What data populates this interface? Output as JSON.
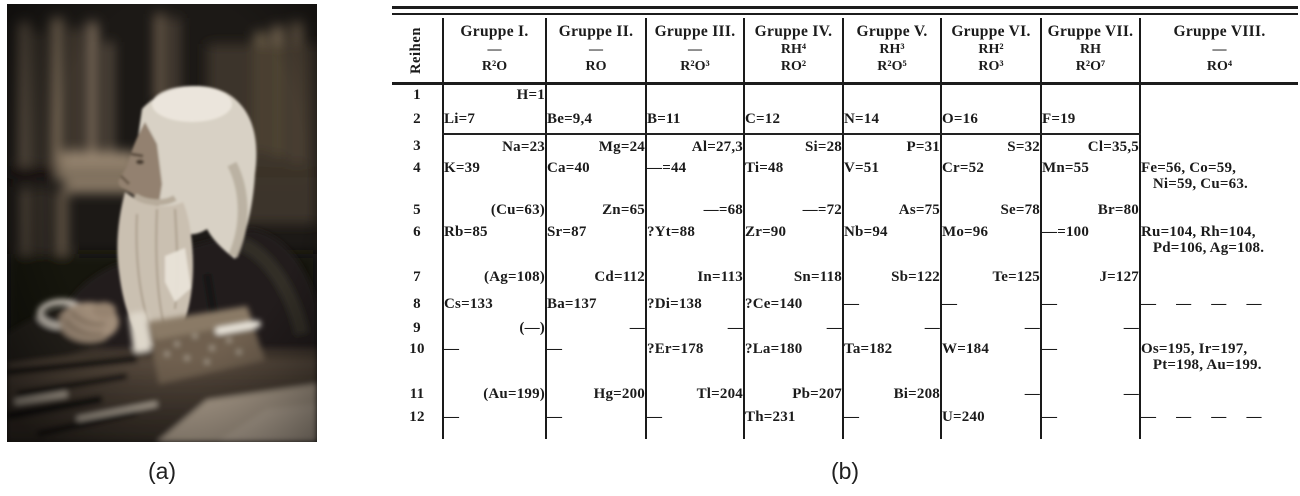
{
  "figure": {
    "caption_a": "(a)",
    "caption_b": "(b)"
  },
  "colors": {
    "ink": "#1b1b1b",
    "paper": "#ffffff"
  },
  "table": {
    "row_header_label": "Reihen",
    "columns": [
      {
        "name": "Gruppe I.",
        "hydride": "—",
        "oxide": "R²O"
      },
      {
        "name": "Gruppe II.",
        "hydride": "—",
        "oxide": "RO"
      },
      {
        "name": "Gruppe III.",
        "hydride": "—",
        "oxide": "R²O³"
      },
      {
        "name": "Gruppe IV.",
        "hydride": "RH⁴",
        "oxide": "RO²"
      },
      {
        "name": "Gruppe V.",
        "hydride": "RH³",
        "oxide": "R²O⁵"
      },
      {
        "name": "Gruppe VI.",
        "hydride": "RH²",
        "oxide": "RO³"
      },
      {
        "name": "Gruppe VII.",
        "hydride": "RH",
        "oxide": "R²O⁷"
      },
      {
        "name": "Gruppe VIII.",
        "hydride": "—",
        "oxide": "RO⁴"
      }
    ],
    "rows": [
      {
        "reihe": "1",
        "align": "right",
        "cells": [
          "H=1",
          "",
          "",
          "",
          "",
          "",
          "",
          ""
        ]
      },
      {
        "reihe": "2",
        "align": "left",
        "cells": [
          "Li=7",
          "Be=9,4",
          "B=11",
          "C=12",
          "N=14",
          "O=16",
          "F=19",
          ""
        ]
      },
      {
        "reihe": "3",
        "align": "right",
        "cells": [
          "Na=23",
          "Mg=24",
          "Al=27,3",
          "Si=28",
          "P=31",
          "S=32",
          "Cl=35,5",
          ""
        ]
      },
      {
        "reihe": "4",
        "align": "left",
        "cells": [
          "K=39",
          "Ca=40",
          "—=44",
          "Ti=48",
          "V=51",
          "Cr=52",
          "Mn=55",
          "Fe=56, Co=59,\n   Ni=59, Cu=63."
        ]
      },
      {
        "reihe": "5",
        "align": "right",
        "cells": [
          "(Cu=63)",
          "Zn=65",
          "—=68",
          "—=72",
          "As=75",
          "Se=78",
          "Br=80",
          ""
        ]
      },
      {
        "reihe": "6",
        "align": "left",
        "cells": [
          "Rb=85",
          "Sr=87",
          "?Yt=88",
          "Zr=90",
          "Nb=94",
          "Mo=96",
          "—=100",
          "Ru=104, Rh=104,\n   Pd=106, Ag=108."
        ]
      },
      {
        "reihe": "7",
        "align": "right",
        "cells": [
          "(Ag=108)",
          "Cd=112",
          "In=113",
          "Sn=118",
          "Sb=122",
          "Te=125",
          "J=127",
          ""
        ]
      },
      {
        "reihe": "8",
        "align": "left",
        "cells": [
          "Cs=133",
          "Ba=137",
          "?Di=138",
          "?Ce=140",
          "—",
          "—",
          "—",
          "— — — —"
        ]
      },
      {
        "reihe": "9",
        "align": "right",
        "cells": [
          "(—)",
          "—",
          "—",
          "—",
          "—",
          "—",
          "—",
          ""
        ]
      },
      {
        "reihe": "10",
        "align": "left",
        "cells": [
          "—",
          "—",
          "?Er=178",
          "?La=180",
          "Ta=182",
          "W=184",
          "—",
          "Os=195, Ir=197,\n   Pt=198, Au=199."
        ]
      },
      {
        "reihe": "11",
        "align": "right",
        "cells": [
          "(Au=199)",
          "Hg=200",
          "Tl=204",
          "Pb=207",
          "Bi=208",
          "—",
          "—",
          ""
        ]
      },
      {
        "reihe": "12",
        "align": "left",
        "cells": [
          "—",
          "—",
          "—",
          "Th=231",
          "—",
          "U=240",
          "—",
          "— — — —"
        ]
      }
    ]
  }
}
